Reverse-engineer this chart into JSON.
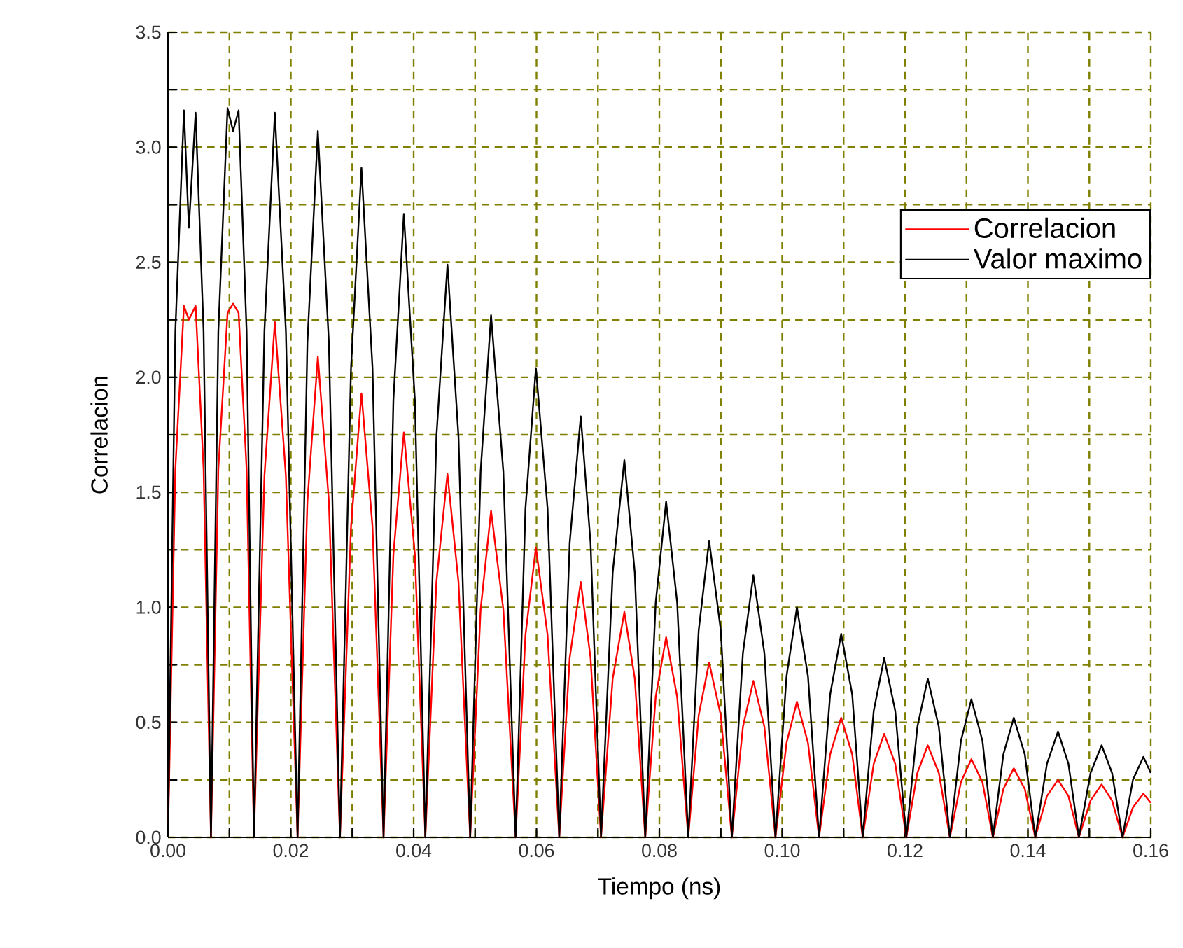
{
  "chart_data": {
    "type": "line",
    "xlabel": "Tiempo (ns)",
    "ylabel": "Correlacion",
    "x": [
      0,
      0.0012,
      0.0026,
      0.0034,
      0.0045,
      0.0058,
      0.007,
      0.0082,
      0.0097,
      0.0106,
      0.0115,
      0.0128,
      0.014,
      0.0157,
      0.0174,
      0.0192,
      0.0211,
      0.0227,
      0.0244,
      0.0262,
      0.028,
      0.0298,
      0.0315,
      0.0333,
      0.0351,
      0.0367,
      0.0384,
      0.0402,
      0.0419,
      0.0437,
      0.0455,
      0.0473,
      0.0492,
      0.0509,
      0.0526,
      0.0546,
      0.0566,
      0.0582,
      0.0599,
      0.0618,
      0.0637,
      0.0654,
      0.0672,
      0.0688,
      0.0705,
      0.0724,
      0.0743,
      0.076,
      0.0777,
      0.0794,
      0.0811,
      0.0829,
      0.0847,
      0.0864,
      0.0881,
      0.09,
      0.0918,
      0.0936,
      0.0953,
      0.0971,
      0.0989,
      0.1007,
      0.1024,
      0.1042,
      0.106,
      0.1078,
      0.1096,
      0.1114,
      0.1131,
      0.1149,
      0.1166,
      0.1184,
      0.1202,
      0.122,
      0.1237,
      0.1255,
      0.1273,
      0.1291,
      0.1308,
      0.1326,
      0.1343,
      0.136,
      0.1377,
      0.1395,
      0.1412,
      0.1431,
      0.1449,
      0.1466,
      0.1483,
      0.1502,
      0.152,
      0.1537,
      0.1554,
      0.1571,
      0.1588,
      0.16
    ],
    "series": [
      {
        "name": "Correlacion",
        "color": "#ff0000",
        "values": [
          0,
          1.6,
          2.31,
          2.25,
          2.31,
          1.6,
          0,
          1.6,
          2.28,
          2.32,
          2.28,
          1.6,
          0,
          1.57,
          2.24,
          1.57,
          0,
          1.46,
          2.09,
          1.46,
          0,
          1.35,
          1.93,
          1.35,
          0,
          1.23,
          1.76,
          1.23,
          0,
          1.11,
          1.58,
          1.11,
          0,
          0.99,
          1.42,
          0.99,
          0,
          0.88,
          1.26,
          0.88,
          0,
          0.78,
          1.11,
          0.78,
          0,
          0.69,
          0.98,
          0.69,
          0,
          0.61,
          0.87,
          0.61,
          0,
          0.53,
          0.76,
          0.53,
          0,
          0.48,
          0.68,
          0.48,
          0,
          0.41,
          0.59,
          0.41,
          0,
          0.36,
          0.52,
          0.36,
          0,
          0.32,
          0.45,
          0.32,
          0,
          0.28,
          0.4,
          0.28,
          0,
          0.24,
          0.34,
          0.24,
          0,
          0.21,
          0.3,
          0.21,
          0,
          0.18,
          0.25,
          0.18,
          0,
          0.16,
          0.23,
          0.16,
          0,
          0.13,
          0.19,
          0.15
        ]
      },
      {
        "name": "Valor maximo",
        "color": "#000000",
        "values": [
          0,
          2.2,
          3.16,
          2.65,
          3.15,
          2.2,
          0,
          2.2,
          3.17,
          3.07,
          3.16,
          2.2,
          0,
          2.2,
          3.15,
          2.2,
          0,
          2.15,
          3.07,
          2.15,
          0,
          2.04,
          2.91,
          2.04,
          0,
          1.9,
          2.71,
          1.9,
          0,
          1.74,
          2.49,
          1.74,
          0,
          1.59,
          2.27,
          1.59,
          0,
          1.43,
          2.04,
          1.43,
          0,
          1.28,
          1.83,
          1.28,
          0,
          1.15,
          1.64,
          1.15,
          0,
          1.02,
          1.46,
          1.02,
          0,
          0.9,
          1.29,
          0.9,
          0,
          0.8,
          1.14,
          0.8,
          0,
          0.7,
          1.0,
          0.7,
          0,
          0.62,
          0.885,
          0.62,
          0,
          0.55,
          0.78,
          0.55,
          0,
          0.48,
          0.69,
          0.48,
          0,
          0.42,
          0.6,
          0.42,
          0,
          0.36,
          0.52,
          0.36,
          0,
          0.32,
          0.46,
          0.32,
          0,
          0.28,
          0.4,
          0.28,
          0,
          0.25,
          0.35,
          0.28
        ]
      }
    ],
    "xlim": [
      0,
      0.16
    ],
    "ylim": [
      0,
      3.5
    ],
    "xticks": [
      {
        "value": 0,
        "label": "0.00"
      },
      {
        "value": 0.01,
        "label": null
      },
      {
        "value": 0.02,
        "label": "0.02"
      },
      {
        "value": 0.03,
        "label": null
      },
      {
        "value": 0.04,
        "label": "0.04"
      },
      {
        "value": 0.05,
        "label": null
      },
      {
        "value": 0.06,
        "label": "0.06"
      },
      {
        "value": 0.07,
        "label": null
      },
      {
        "value": 0.08,
        "label": "0.08"
      },
      {
        "value": 0.09,
        "label": null
      },
      {
        "value": 0.1,
        "label": "0.10"
      },
      {
        "value": 0.11,
        "label": null
      },
      {
        "value": 0.12,
        "label": "0.12"
      },
      {
        "value": 0.13,
        "label": null
      },
      {
        "value": 0.14,
        "label": "0.14"
      },
      {
        "value": 0.15,
        "label": null
      },
      {
        "value": 0.16,
        "label": "0.16"
      }
    ],
    "yticks": [
      {
        "value": 0,
        "label": "0.0"
      },
      {
        "value": 0.25,
        "label": null
      },
      {
        "value": 0.5,
        "label": "0.5"
      },
      {
        "value": 0.75,
        "label": null
      },
      {
        "value": 1.0,
        "label": "1.0"
      },
      {
        "value": 1.25,
        "label": null
      },
      {
        "value": 1.5,
        "label": "1.5"
      },
      {
        "value": 1.75,
        "label": null
      },
      {
        "value": 2.0,
        "label": "2.0"
      },
      {
        "value": 2.25,
        "label": null
      },
      {
        "value": 2.5,
        "label": "2.5"
      },
      {
        "value": 2.75,
        "label": null
      },
      {
        "value": 3.0,
        "label": "3.0"
      },
      {
        "value": 3.25,
        "label": null
      },
      {
        "value": 3.5,
        "label": "3.5"
      }
    ],
    "grid": true,
    "legend": "top right"
  }
}
